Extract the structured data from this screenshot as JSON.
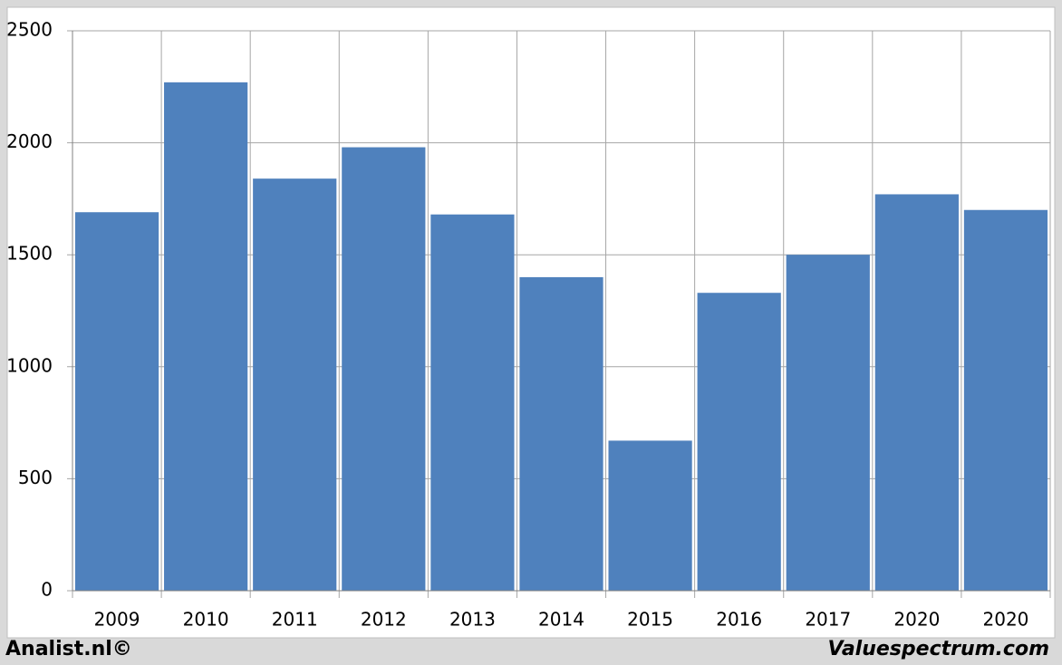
{
  "chart_data": {
    "type": "bar",
    "categories": [
      "2009",
      "2010",
      "2011",
      "2012",
      "2013",
      "2014",
      "2015",
      "2016",
      "2017",
      "2020",
      "2020"
    ],
    "values": [
      1690,
      2270,
      1840,
      1980,
      1680,
      1400,
      670,
      1330,
      1500,
      1770,
      1700
    ],
    "color": "#4f81bd",
    "ylim": [
      0,
      2500
    ],
    "yticks": [
      0,
      500,
      1000,
      1500,
      2000,
      2500
    ],
    "grid": true,
    "footer_left": "Analist.nl©",
    "footer_right": "Valuespectrum.com"
  }
}
